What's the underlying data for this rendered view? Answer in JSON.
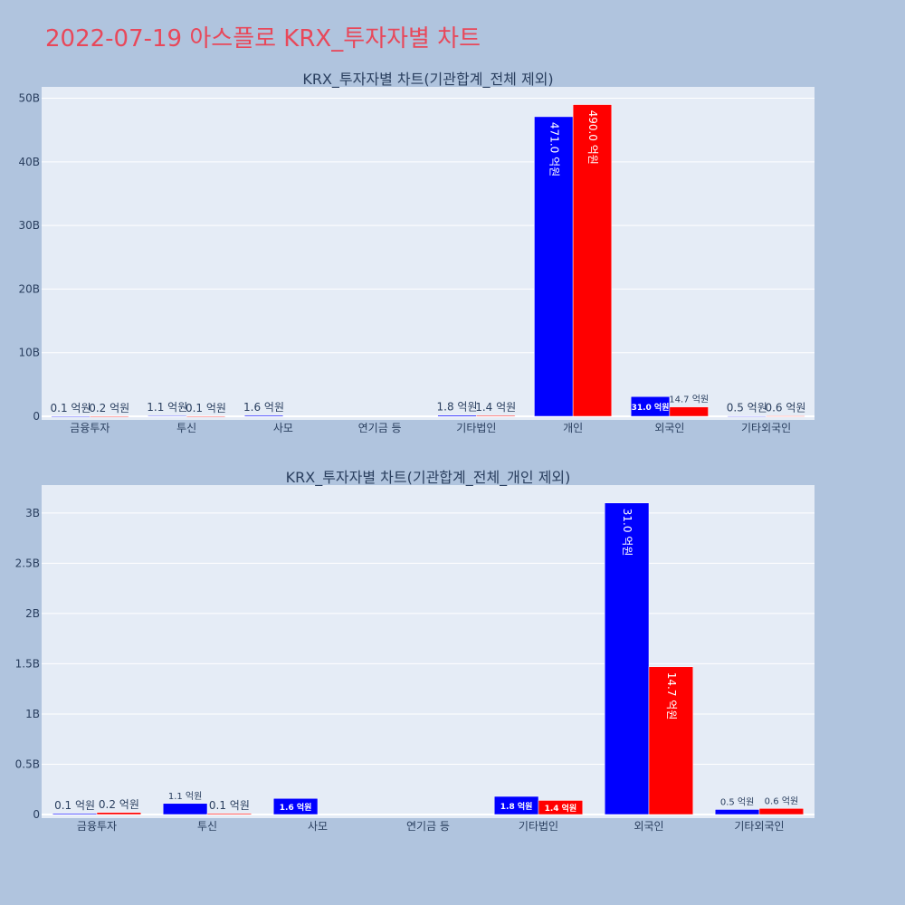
{
  "page": {
    "title": "2022-07-19 아스플로 KRX_투자자별 차트"
  },
  "colors": {
    "background": "#b0c4de",
    "plot_bg": "#e5ecf6",
    "buy": "#0000ff",
    "sell": "#ff0000",
    "title": "#e8485a",
    "text": "#2a3f5f"
  },
  "chart_data": [
    {
      "type": "bar",
      "title": "KRX_투자자별 차트(기관합계_전체 제외)",
      "categories": [
        "금융투자",
        "투신",
        "사모",
        "연기금 등",
        "기타법인",
        "개인",
        "외국인",
        "기타외국인"
      ],
      "series": [
        {
          "color": "#0000ff",
          "values": [
            10000000,
            110000000,
            160000000,
            0,
            180000000,
            47100000000,
            3100000000,
            50000000
          ],
          "labels": [
            "0.1 억원",
            "1.1 억원",
            "1.6 억원",
            "",
            "1.8 억원",
            "471.0 억원",
            "31.0 억원",
            "0.5 억원"
          ]
        },
        {
          "color": "#ff0000",
          "values": [
            20000000,
            10000000,
            0,
            0,
            140000000,
            49000000000,
            1470000000,
            60000000
          ],
          "labels": [
            "0.2 억원",
            "0.1 억원",
            "",
            "",
            "1.4 억원",
            "490.0 억원",
            "14.7 억원",
            "0.6 억원"
          ]
        }
      ],
      "yticks": [
        0,
        10000000000,
        20000000000,
        30000000000,
        40000000000,
        50000000000
      ],
      "ytick_labels": [
        "0",
        "10B",
        "20B",
        "30B",
        "40B",
        "50B"
      ],
      "ylim": [
        0,
        51500000000
      ],
      "grid": true
    },
    {
      "type": "bar",
      "title": "KRX_투자자별 차트(기관합계_전체_개인 제외)",
      "categories": [
        "금융투자",
        "투신",
        "사모",
        "연기금 등",
        "기타법인",
        "외국인",
        "기타외국인"
      ],
      "series": [
        {
          "color": "#0000ff",
          "values": [
            10000000,
            110000000,
            160000000,
            0,
            180000000,
            3100000000,
            50000000
          ],
          "labels": [
            "0.1 억원",
            "1.1 억원",
            "1.6 억원",
            "",
            "1.8 억원",
            "31.0 억원",
            "0.5 억원"
          ]
        },
        {
          "color": "#ff0000",
          "values": [
            20000000,
            10000000,
            0,
            0,
            140000000,
            1470000000,
            60000000
          ],
          "labels": [
            "0.2 억원",
            "0.1 억원",
            "",
            "",
            "1.4 억원",
            "14.7 억원",
            "0.6 억원"
          ]
        }
      ],
      "yticks": [
        0,
        500000000,
        1000000000,
        1500000000,
        2000000000,
        2500000000,
        3000000000
      ],
      "ytick_labels": [
        "0",
        "0.5B",
        "1B",
        "1.5B",
        "2B",
        "2.5B",
        "3B"
      ],
      "ylim": [
        0,
        3260000000
      ],
      "grid": true
    }
  ]
}
